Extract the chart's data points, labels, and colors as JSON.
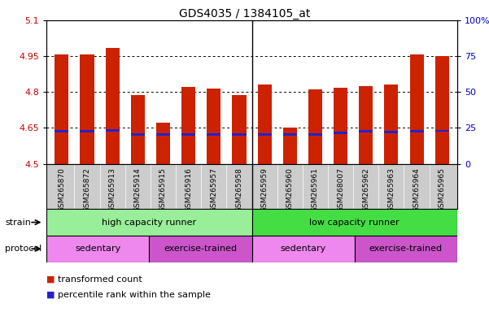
{
  "title": "GDS4035 / 1384105_at",
  "samples": [
    "GSM265870",
    "GSM265872",
    "GSM265913",
    "GSM265914",
    "GSM265915",
    "GSM265916",
    "GSM265957",
    "GSM265958",
    "GSM265959",
    "GSM265960",
    "GSM265961",
    "GSM268007",
    "GSM265962",
    "GSM265963",
    "GSM265964",
    "GSM265965"
  ],
  "transformed_counts": [
    4.957,
    4.958,
    4.983,
    4.787,
    4.672,
    4.82,
    4.813,
    4.787,
    4.83,
    4.653,
    4.812,
    4.817,
    4.825,
    4.832,
    4.958,
    4.952
  ],
  "percentile_ranks": [
    4.637,
    4.637,
    4.64,
    4.622,
    4.622,
    4.622,
    4.622,
    4.622,
    4.622,
    4.622,
    4.622,
    4.63,
    4.637,
    4.632,
    4.637,
    4.638
  ],
  "bar_bottom": 4.5,
  "ylim_left": [
    4.5,
    5.1
  ],
  "ylim_right": [
    0,
    100
  ],
  "yticks_left": [
    4.5,
    4.65,
    4.8,
    4.95,
    5.1
  ],
  "yticks_right": [
    0,
    25,
    50,
    75,
    100
  ],
  "strain_groups": [
    {
      "label": "high capacity runner",
      "start": 0,
      "end": 8,
      "color": "#99EE99"
    },
    {
      "label": "low capacity runner",
      "start": 8,
      "end": 16,
      "color": "#44DD44"
    }
  ],
  "protocol_groups": [
    {
      "label": "sedentary",
      "start": 0,
      "end": 4,
      "color": "#EE88EE"
    },
    {
      "label": "exercise-trained",
      "start": 4,
      "end": 8,
      "color": "#CC55CC"
    },
    {
      "label": "sedentary",
      "start": 8,
      "end": 12,
      "color": "#EE88EE"
    },
    {
      "label": "exercise-trained",
      "start": 12,
      "end": 16,
      "color": "#CC55CC"
    }
  ],
  "bar_color": "#CC2200",
  "blue_color": "#2222CC",
  "background_color": "#FFFFFF",
  "tick_color_left": "#CC0000",
  "tick_color_right": "#0000CC",
  "grid_color": "#000000",
  "label_strain": "strain",
  "label_protocol": "protocol",
  "legend_red": "transformed count",
  "legend_blue": "percentile rank within the sample",
  "xtick_area_color": "#CCCCCC"
}
